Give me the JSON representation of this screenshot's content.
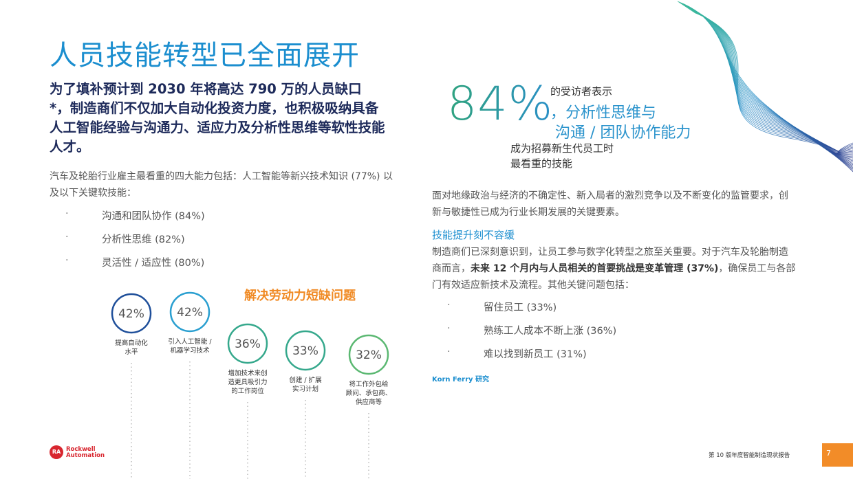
{
  "title": "人员技能转型已全面展开",
  "intro": {
    "lead": "为了填补预计到 2030 年将高达 790 万的人员缺口 *，制造商们不仅加大自动化投资力度，也积极吸纳具备",
    "bold": "人工智能经验与沟通力、适应力及分析性思维等软性技能人才。"
  },
  "left_body": "汽车及轮胎行业雇主最看重的四大能力包括：人工智能等新兴技术知识 (77%) 以及以下关键软技能：",
  "left_bullets": [
    "沟通和团队协作 (84%)",
    "分析性思维 (82%)",
    "灵活性 / 适应性 (80%)"
  ],
  "infographic": {
    "title": "解决劳动力短缺问题",
    "items": [
      {
        "value": "42%",
        "label": [
          "提高自动化",
          "水平"
        ]
      },
      {
        "value": "42%",
        "label": [
          "引入人工智能 /",
          "机器学习技术"
        ]
      },
      {
        "value": "36%",
        "label": [
          "增加技术来创",
          "造更具吸引力",
          "的工作岗位"
        ]
      },
      {
        "value": "33%",
        "label": [
          "创建 / 扩展",
          "实习计划"
        ]
      },
      {
        "value": "32%",
        "label": [
          "将工作外包给",
          "顾问、承包商、",
          "供应商等"
        ]
      }
    ]
  },
  "stat": {
    "value": "84%",
    "line1": "的受访者表示",
    "line2": "，分析性思维与",
    "line3": "沟通 / 团队协作能力",
    "line4": "成为招募新生代员工时",
    "line5": "最看重的技能"
  },
  "right_body": "面对地缘政治与经济的不确定性、新入局者的激烈竞争以及不断变化的监管要求，创新与敏捷性已成为行业长期发展的关键要素。",
  "right_heading": "技能提升刻不容缓",
  "right_para": {
    "lead": "制造商们已深刻意识到，让员工参与数字化转型之旅至关重要。对于汽车及轮胎制造商而言，",
    "bold": "未来 12 个月内与人员相关的首要挑战是变革管理 (37%)",
    "tail": "，确保员工与各部门有效适应新技术及流程。其他关键问题包括："
  },
  "right_bullets": [
    "留住员工 (33%)",
    "熟练工人成本不断上涨 (36%)",
    "难以找到新员工 (31%)"
  ],
  "source": "Korn Ferry 研究",
  "footer": {
    "logo_mark": "RA",
    "logo_line1": "Rockwell",
    "logo_line2": "Automation",
    "report": "第 10 版年度智能制造现状报告",
    "page": "7"
  }
}
